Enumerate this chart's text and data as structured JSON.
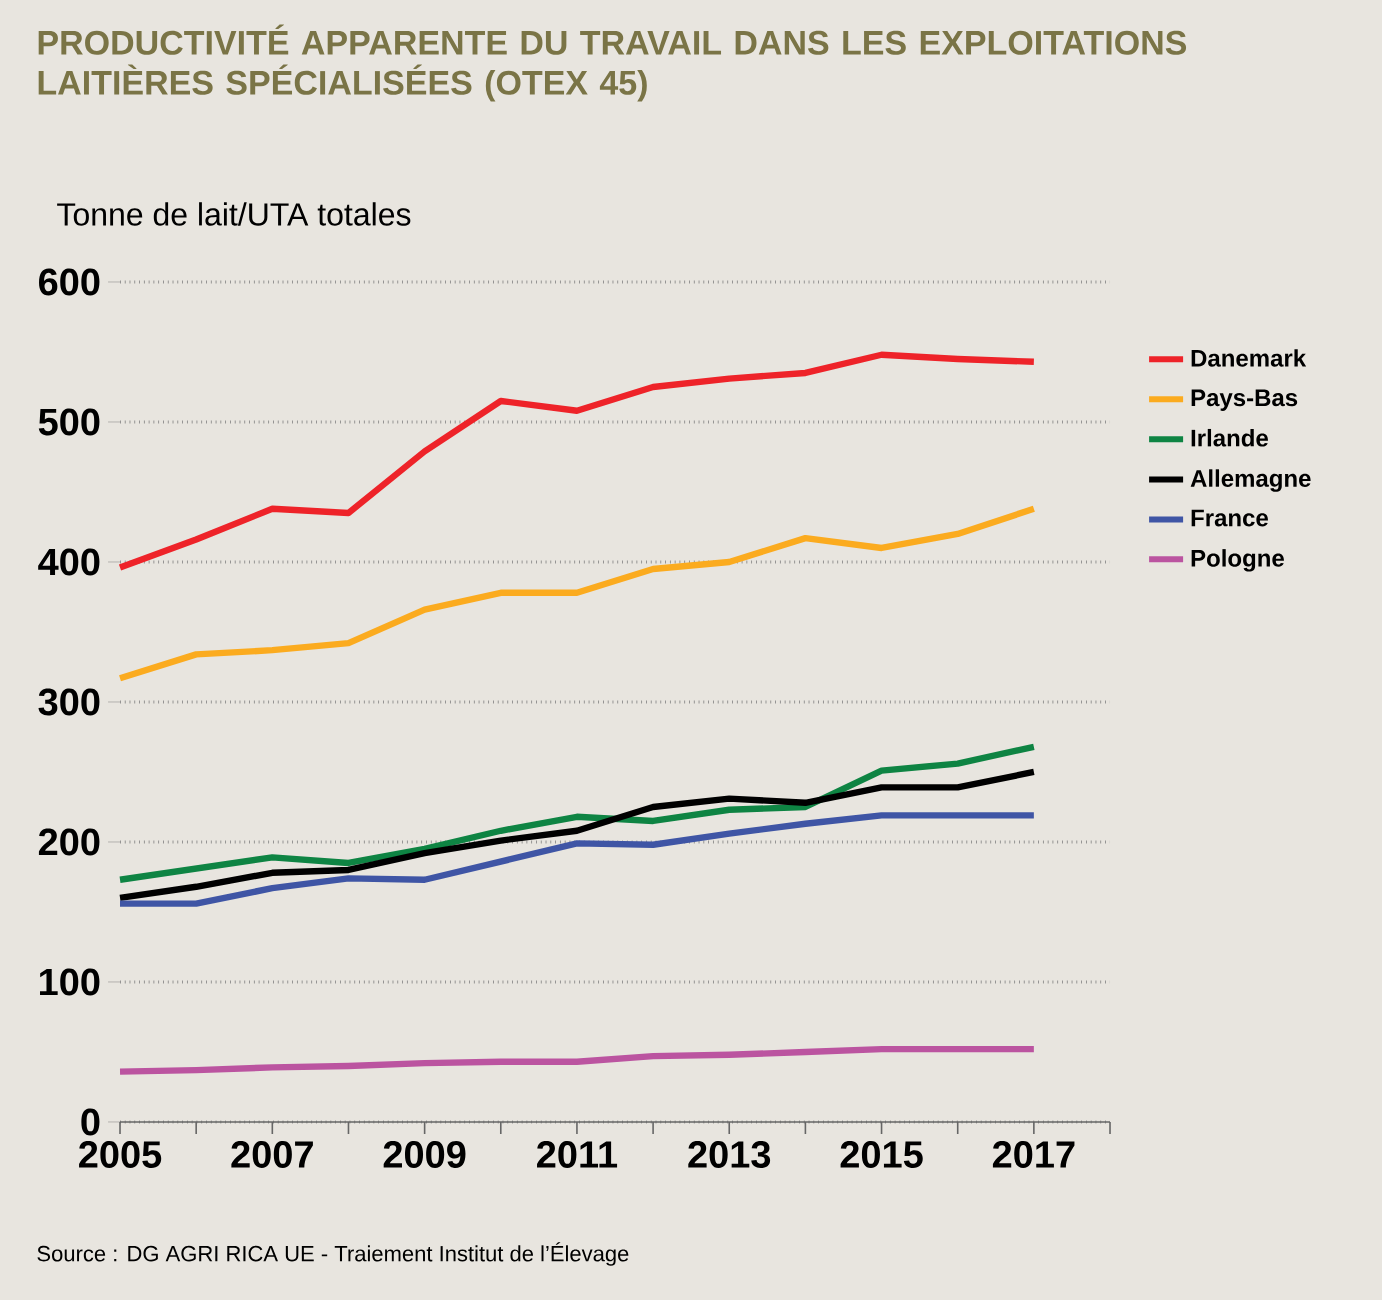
{
  "chart_data": {
    "type": "line",
    "title": "PRODUCTIVITÉ APPARENTE DU TRAVAIL DANS LES EXPLOITATIONS LAITIÈRES SPÉCIALISÉES (OTEX 45)",
    "ylabel": "Tonne de lait/UTA totales",
    "annotations": [
      "Source : DG AGRI RICA UE - Traiement Institut de l’Élevage"
    ],
    "x": [
      2005,
      2006,
      2007,
      2008,
      2009,
      2010,
      2011,
      2012,
      2013,
      2014,
      2015,
      2016,
      2017
    ],
    "xlim": [
      2005,
      2018
    ],
    "xticks": [
      2005,
      {
        "value": 2006,
        "label": null
      },
      2007,
      {
        "value": 2008,
        "label": null
      },
      2009,
      {
        "value": 2010,
        "label": null
      },
      2011,
      {
        "value": 2012,
        "label": null
      },
      2013,
      {
        "value": 2014,
        "label": null
      },
      2015,
      {
        "value": 2016,
        "label": null
      },
      2017,
      {
        "value": 2018,
        "label": null
      }
    ],
    "ylim": [
      0,
      600
    ],
    "yticks": [
      0,
      100,
      200,
      300,
      400,
      500,
      600
    ],
    "grid": "y",
    "legend": "right",
    "marker": "none",
    "line_style": "solid",
    "series": [
      {
        "name": "Danemark",
        "color": "#ee2329",
        "values": [
          396,
          416,
          438,
          435,
          479,
          515,
          508,
          525,
          531,
          535,
          548,
          545,
          543
        ]
      },
      {
        "name": "Pays-Bas",
        "color": "#fbab1f",
        "values": [
          317,
          334,
          337,
          342,
          366,
          378,
          378,
          395,
          400,
          417,
          410,
          420,
          438
        ]
      },
      {
        "name": "Irlande",
        "color": "#0e8443",
        "values": [
          173,
          181,
          189,
          185,
          195,
          208,
          218,
          215,
          223,
          225,
          251,
          256,
          268
        ]
      },
      {
        "name": "Allemagne",
        "color": "#000000",
        "values": [
          160,
          168,
          178,
          180,
          192,
          201,
          208,
          225,
          231,
          228,
          239,
          239,
          250
        ]
      },
      {
        "name": "France",
        "color": "#3f55a5",
        "values": [
          156,
          156,
          167,
          174,
          173,
          186,
          199,
          198,
          206,
          213,
          219,
          219,
          219
        ]
      },
      {
        "name": "Pologne",
        "color": "#bb54a0",
        "values": [
          36,
          37,
          39,
          40,
          42,
          43,
          43,
          47,
          48,
          50,
          52,
          52,
          52
        ]
      }
    ]
  }
}
